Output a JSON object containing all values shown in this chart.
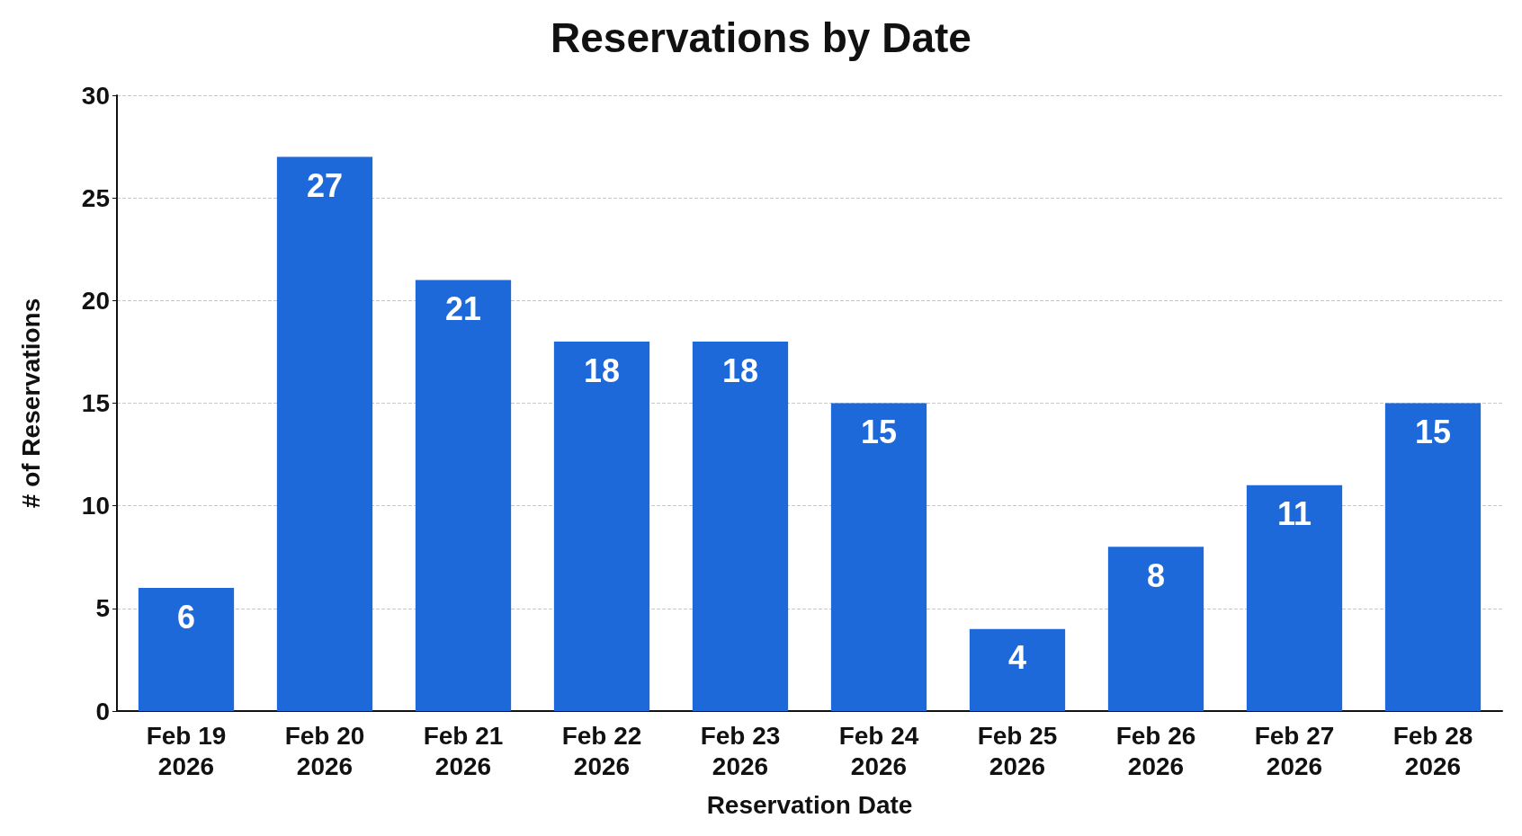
{
  "chart_data": {
    "type": "bar",
    "title": "Reservations by Date",
    "xlabel": "Reservation Date",
    "ylabel": "# of Reservations",
    "categories": [
      "Feb 19\n2026",
      "Feb 20\n2026",
      "Feb 21\n2026",
      "Feb 22\n2026",
      "Feb 23\n2026",
      "Feb 24\n2026",
      "Feb 25\n2026",
      "Feb 26\n2026",
      "Feb 27\n2026",
      "Feb 28\n2026"
    ],
    "values": [
      6,
      27,
      21,
      18,
      18,
      15,
      4,
      8,
      11,
      15
    ],
    "color": "#1e69d9",
    "ylim": [
      0,
      30
    ],
    "yticks": [
      0,
      5,
      10,
      15,
      20,
      25,
      30
    ],
    "grid": "y",
    "data_labels": true
  }
}
